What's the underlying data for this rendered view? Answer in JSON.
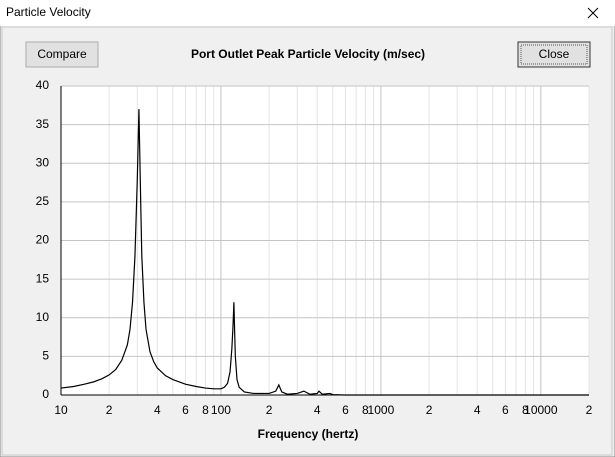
{
  "window": {
    "title": "Particle Velocity",
    "buttons": [
      "Compare",
      "Close"
    ]
  },
  "chart_data": {
    "type": "line",
    "title": "Port Outlet Peak Particle Velocity (m/sec)",
    "x_label": "Frequency (hertz)",
    "x_scale": "log",
    "color": "#000000",
    "grid": true,
    "xlim": [
      10,
      20000
    ],
    "ylim": [
      0,
      40
    ],
    "xticks": [
      10,
      {
        "value": 20,
        "label": "2"
      },
      {
        "value": 40,
        "label": "4"
      },
      {
        "value": 60,
        "label": "6"
      },
      {
        "value": 80,
        "label": "8"
      },
      100,
      {
        "value": 200,
        "label": "2"
      },
      {
        "value": 400,
        "label": "4"
      },
      {
        "value": 600,
        "label": "6"
      },
      {
        "value": 800,
        "label": "8"
      },
      {
        "value": 1000,
        "label": "1000"
      },
      {
        "value": 2000,
        "label": "2"
      },
      {
        "value": 4000,
        "label": "4"
      },
      {
        "value": 6000,
        "label": "6"
      },
      {
        "value": 8000,
        "label": "8"
      },
      {
        "value": 10000,
        "label": "10000"
      },
      {
        "value": 20000,
        "label": "2"
      }
    ],
    "xminor": [
      30,
      50,
      70,
      90,
      300,
      500,
      700,
      900,
      3000,
      5000,
      7000,
      9000
    ],
    "yticks": [
      0,
      5,
      10,
      15,
      20,
      25,
      30,
      35,
      40
    ],
    "x": [
      10,
      12,
      14,
      16,
      18,
      20,
      22,
      24,
      26,
      27,
      28,
      29,
      30,
      30.7,
      31.5,
      32,
      33,
      34,
      36,
      38,
      40,
      45,
      50,
      60,
      70,
      80,
      90,
      100,
      105,
      110,
      114,
      117,
      119,
      120.5,
      121.5,
      123,
      126,
      130,
      140,
      160,
      200,
      220,
      230,
      240,
      260,
      300,
      330,
      360,
      400,
      410,
      430,
      480,
      500,
      600,
      1000,
      2000,
      5000,
      10000,
      20000
    ],
    "values": [
      0.9,
      1.1,
      1.4,
      1.7,
      2.1,
      2.6,
      3.3,
      4.5,
      6.5,
      8.5,
      12,
      18,
      28,
      37,
      25,
      18,
      12,
      8.5,
      5.6,
      4.3,
      3.5,
      2.5,
      2,
      1.4,
      1.1,
      0.9,
      0.8,
      0.8,
      1,
      1.5,
      3,
      6,
      9,
      12,
      9,
      5,
      2,
      1,
      0.4,
      0.2,
      0.2,
      0.5,
      1.3,
      0.4,
      0.1,
      0.2,
      0.5,
      0.1,
      0.2,
      0.5,
      0.1,
      0.2,
      0.05,
      0,
      0,
      0,
      0,
      0,
      0
    ]
  }
}
